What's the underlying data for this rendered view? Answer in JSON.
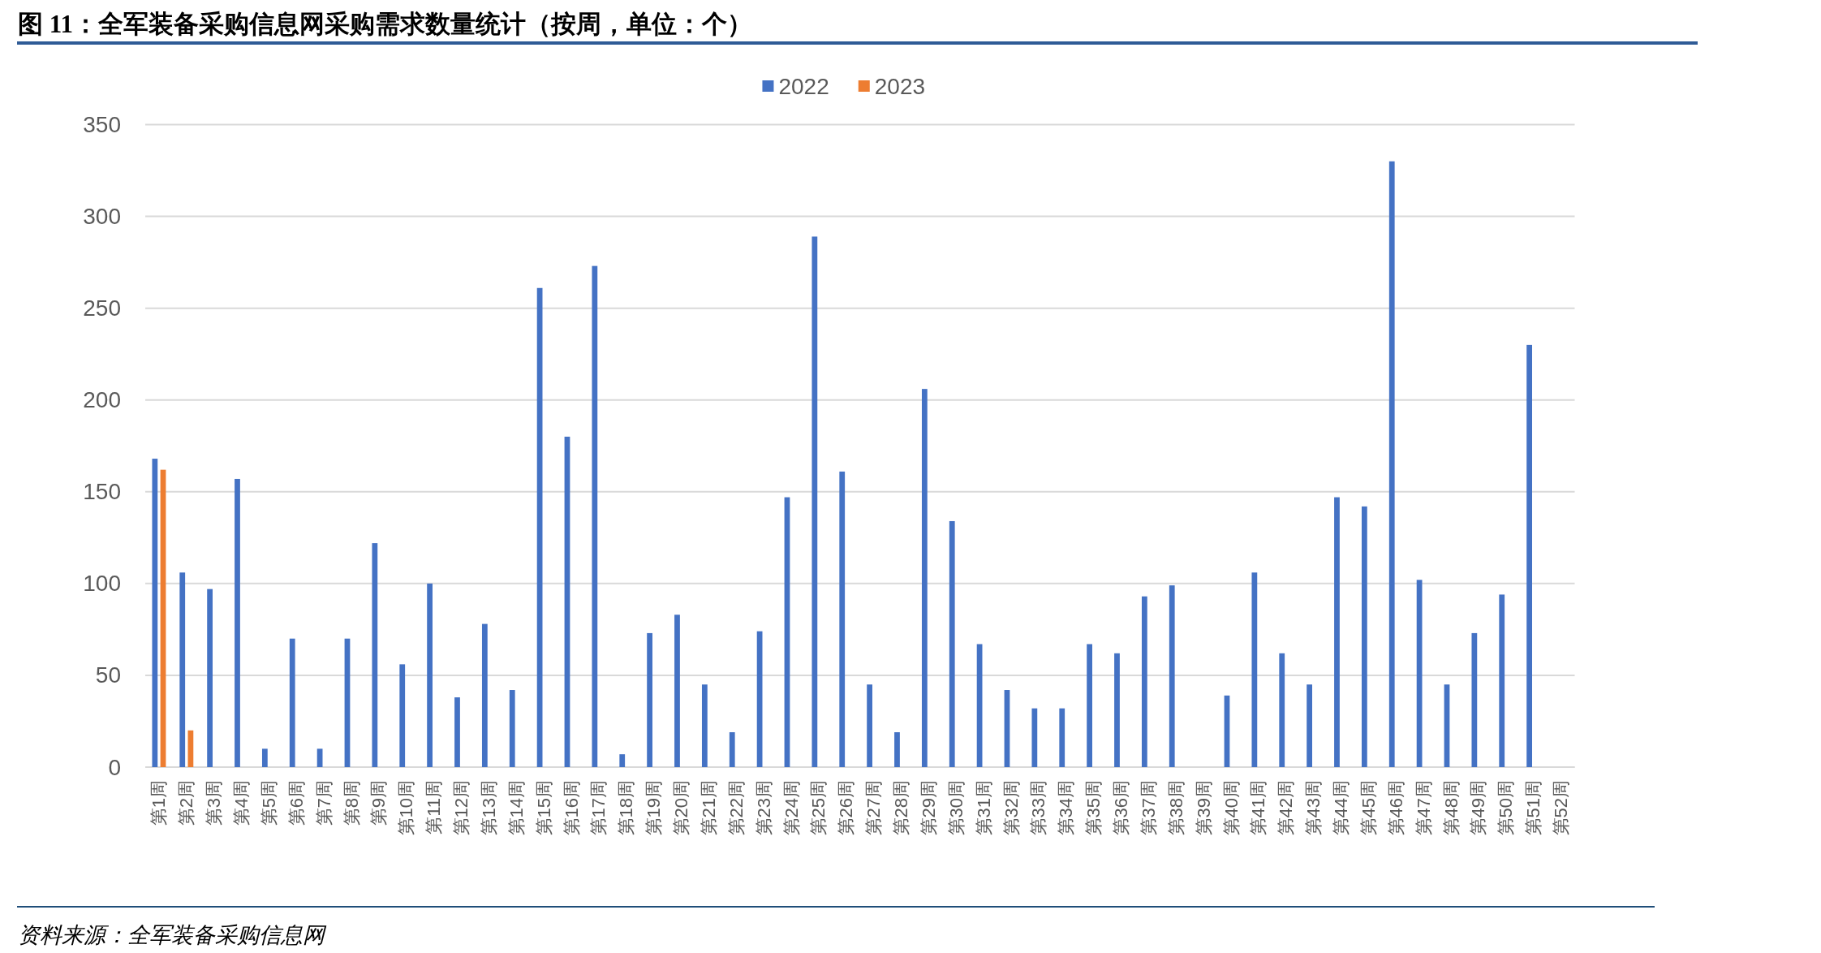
{
  "chart_data": {
    "type": "bar",
    "title": "图 11：全军装备采购信息网采购需求数量统计（按周，单位：个）",
    "categories": [
      "第1周",
      "第2周",
      "第3周",
      "第4周",
      "第5周",
      "第6周",
      "第7周",
      "第8周",
      "第9周",
      "第10周",
      "第11周",
      "第12周",
      "第13周",
      "第14周",
      "第15周",
      "第16周",
      "第17周",
      "第18周",
      "第19周",
      "第20周",
      "第21周",
      "第22周",
      "第23周",
      "第24周",
      "第25周",
      "第26周",
      "第27周",
      "第28周",
      "第29周",
      "第30周",
      "第31周",
      "第32周",
      "第33周",
      "第34周",
      "第35周",
      "第36周",
      "第37周",
      "第38周",
      "第39周",
      "第40周",
      "第41周",
      "第42周",
      "第43周",
      "第44周",
      "第45周",
      "第46周",
      "第47周",
      "第48周",
      "第49周",
      "第50周",
      "第51周",
      "第52周"
    ],
    "series": [
      {
        "name": "2022",
        "color": "#4472c4",
        "values": [
          168,
          106,
          97,
          157,
          10,
          70,
          10,
          70,
          122,
          56,
          100,
          38,
          78,
          42,
          261,
          180,
          273,
          7,
          73,
          83,
          45,
          19,
          74,
          147,
          289,
          161,
          45,
          19,
          206,
          134,
          67,
          42,
          32,
          32,
          67,
          62,
          93,
          99,
          null,
          39,
          106,
          62,
          45,
          147,
          142,
          330,
          102,
          45,
          73,
          94,
          230,
          null
        ]
      },
      {
        "name": "2023",
        "color": "#ed7d31",
        "values": [
          162,
          20,
          null,
          null,
          null,
          null,
          null,
          null,
          null,
          null,
          null,
          null,
          null,
          null,
          null,
          null,
          null,
          null,
          null,
          null,
          null,
          null,
          null,
          null,
          null,
          null,
          null,
          null,
          null,
          null,
          null,
          null,
          null,
          null,
          null,
          null,
          null,
          null,
          null,
          null,
          null,
          null,
          null,
          null,
          null,
          null,
          null,
          null,
          null,
          null,
          null,
          null
        ]
      }
    ],
    "ylim": [
      0,
      350
    ],
    "yticks": [
      0,
      50,
      100,
      150,
      200,
      250,
      300,
      350
    ],
    "grid": "y",
    "legend": "top",
    "annotations": [
      "资料来源：全军装备采购信息网"
    ]
  }
}
